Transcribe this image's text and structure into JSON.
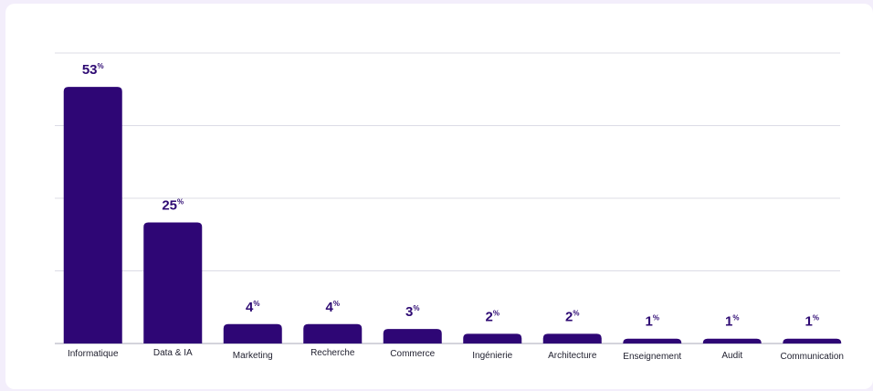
{
  "colors": {
    "bar": "#2e0675",
    "label": "#2e0a73",
    "grid": "#dcdce6",
    "axis": "#a9a9b8",
    "background": "#f3eefb",
    "card": "#ffffff"
  },
  "chart_data": {
    "type": "bar",
    "title": "",
    "xlabel": "",
    "ylabel": "",
    "ylim": [
      0,
      60
    ],
    "grid": true,
    "unit_suffix": "%",
    "categories": [
      "Informatique",
      "Data & IA",
      "Marketing",
      "Recherche",
      "Commerce",
      "Ingénierie",
      "Architecture",
      "Enseignement",
      "Audit",
      "Communication"
    ],
    "values": [
      53,
      25,
      4,
      4,
      3,
      2,
      2,
      1,
      1,
      1
    ],
    "value_labels": [
      "53",
      "25",
      "4",
      "4",
      "3",
      "2",
      "2",
      "1",
      "1",
      "1"
    ]
  }
}
